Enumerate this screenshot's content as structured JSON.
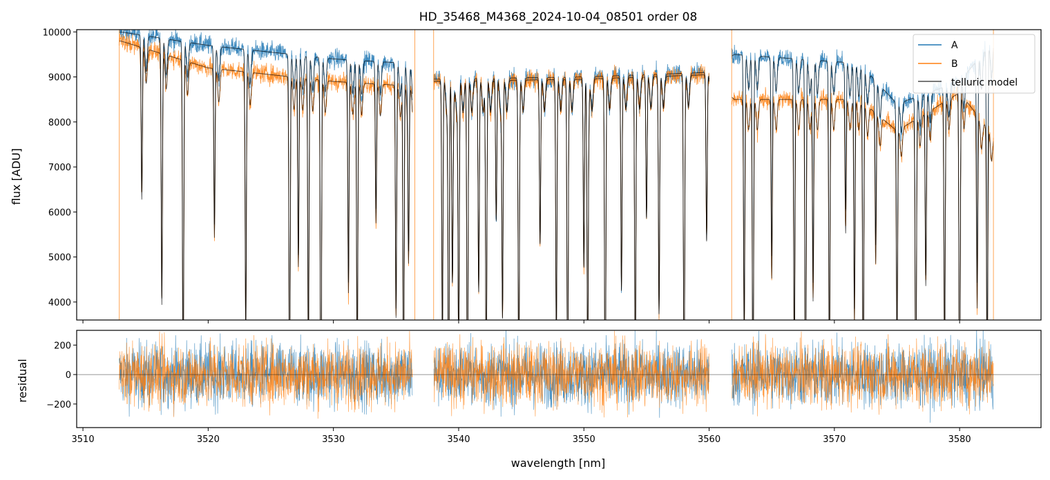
{
  "chart_data": [
    {
      "type": "line",
      "panel": "top",
      "title": "HD_35468_M4368_2024-10-04_08501  order 08",
      "xlabel": "",
      "ylabel": "flux [ADU]",
      "xlim": [
        3509.5,
        3586.5
      ],
      "ylim": [
        3600,
        10050
      ],
      "x_ticks": [
        3510,
        3520,
        3530,
        3540,
        3550,
        3560,
        3570,
        3580
      ],
      "y_ticks": [
        4000,
        5000,
        6000,
        7000,
        8000,
        9000,
        10000
      ],
      "y_tick_labels": [
        "4000",
        "5000",
        "6000",
        "7000",
        "8000",
        "9000",
        "10000"
      ],
      "x_range_data": [
        3512.9,
        3582.7
      ],
      "gaps": [
        [
          3536.3,
          3538.0
        ],
        [
          3560.0,
          3561.8
        ]
      ],
      "legend_position": "top-right",
      "series": [
        {
          "name": "A",
          "color": "#1f77b4",
          "continuum_points": [
            [
              3513,
              10000
            ],
            [
              3520,
              9700
            ],
            [
              3530,
              9400
            ],
            [
              3536,
              9300
            ],
            [
              3538,
              8950
            ],
            [
              3550,
              9000
            ],
            [
              3560,
              9100
            ],
            [
              3562,
              9500
            ],
            [
              3572,
              9300
            ],
            [
              3575,
              8400
            ],
            [
              3580,
              8900
            ],
            [
              3582.7,
              9800
            ]
          ]
        },
        {
          "name": "B",
          "color": "#ff7f0e",
          "continuum_points": [
            [
              3513,
              9800
            ],
            [
              3520,
              9200
            ],
            [
              3530,
              8900
            ],
            [
              3536,
              8800
            ],
            [
              3538,
              8900
            ],
            [
              3550,
              8950
            ],
            [
              3560,
              9050
            ],
            [
              3562,
              8500
            ],
            [
              3572,
              8500
            ],
            [
              3575,
              7800
            ],
            [
              3580,
              8650
            ],
            [
              3582.7,
              7700
            ]
          ]
        },
        {
          "name": "telluric model",
          "color": "#000000"
        }
      ],
      "absorption_lines_nm": [
        3514.7,
        3516.3,
        3518.0,
        3520.5,
        3523.0,
        3526.5,
        3527.2,
        3528.0,
        3529.0,
        3531.2,
        3531.9,
        3533.4,
        3535.0,
        3535.6,
        3536.0,
        3538.7,
        3539.2,
        3539.5,
        3540.0,
        3540.7,
        3541.6,
        3542.2,
        3543.0,
        3543.5,
        3544.8,
        3546.5,
        3547.8,
        3548.7,
        3550.0,
        3550.3,
        3551.7,
        3553.0,
        3554.1,
        3555.0,
        3556.0,
        3558.0,
        3559.8,
        3562.8,
        3563.5,
        3565.0,
        3566.8,
        3567.7,
        3568.3,
        3569.6,
        3570.9,
        3571.6,
        3572.3,
        3573.3,
        3575.0,
        3576.5,
        3577.3,
        3578.8,
        3580.0,
        3581.4,
        3582.2
      ]
    },
    {
      "type": "line",
      "panel": "bottom",
      "title": "",
      "xlabel": "wavelength [nm]",
      "ylabel": "residual",
      "xlim": [
        3509.5,
        3586.5
      ],
      "ylim": [
        -360,
        300
      ],
      "x_ticks": [
        3510,
        3520,
        3530,
        3540,
        3550,
        3560,
        3570,
        3580
      ],
      "x_tick_labels": [
        "3510",
        "3520",
        "3530",
        "3540",
        "3550",
        "3560",
        "3570",
        "3580"
      ],
      "y_ticks": [
        -200,
        0,
        200
      ],
      "y_tick_labels": [
        "−200",
        "0",
        "200"
      ],
      "zero_line": true,
      "noise_sigma": 110,
      "series": [
        {
          "name": "A",
          "color": "#1f77b4"
        },
        {
          "name": "B",
          "color": "#ff7f0e"
        }
      ]
    }
  ]
}
